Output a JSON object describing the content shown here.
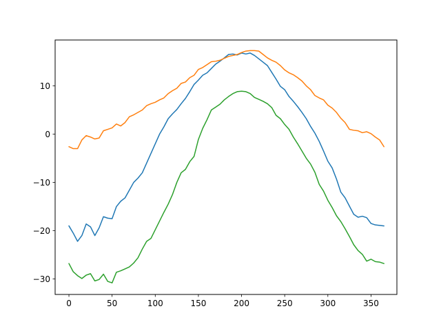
{
  "chart_data": {
    "type": "line",
    "title": "",
    "xlabel": "",
    "ylabel": "",
    "xlim": [
      -16,
      380
    ],
    "ylim": [
      -33.2,
      19.5
    ],
    "grid": false,
    "xticks": [
      0,
      50,
      100,
      150,
      200,
      250,
      300,
      350
    ],
    "yticks": [
      -30,
      -20,
      -10,
      0,
      10
    ],
    "series": [
      {
        "color": "#1f77b4",
        "x": [
          0,
          5,
          10,
          15,
          20,
          25,
          30,
          35,
          40,
          45,
          50,
          55,
          60,
          65,
          70,
          75,
          80,
          85,
          90,
          95,
          100,
          105,
          110,
          115,
          120,
          125,
          130,
          135,
          140,
          145,
          150,
          155,
          160,
          165,
          170,
          175,
          180,
          185,
          190,
          195,
          200,
          205,
          210,
          215,
          220,
          225,
          230,
          235,
          240,
          245,
          250,
          255,
          260,
          265,
          270,
          275,
          280,
          285,
          290,
          295,
          300,
          305,
          310,
          315,
          320,
          325,
          330,
          335,
          340,
          345,
          350,
          355,
          360,
          365
        ],
        "y": [
          -19,
          -20.5,
          -22.2,
          -21,
          -18.6,
          -19.2,
          -21,
          -19.4,
          -17.1,
          -17.4,
          -17.5,
          -15,
          -13.9,
          -13.2,
          -11.6,
          -10,
          -9.1,
          -8,
          -6,
          -4,
          -2,
          0,
          1.5,
          3.2,
          4.2,
          5.1,
          6.3,
          7.4,
          8.8,
          10.3,
          11.2,
          12.2,
          12.7,
          13.6,
          14.5,
          15.1,
          15.8,
          16.5,
          16.6,
          16.4,
          16.8,
          16.6,
          16.8,
          16.3,
          15.6,
          14.9,
          14.2,
          12.8,
          11.4,
          9.9,
          9.2,
          7.8,
          6.8,
          5.7,
          4.5,
          3.2,
          1.6,
          0.2,
          -1.5,
          -3.5,
          -5.6,
          -7,
          -9.3,
          -12,
          -13.2,
          -14.9,
          -16.6,
          -17.2,
          -17,
          -17.3,
          -18.5,
          -18.8,
          -18.9,
          -19
        ]
      },
      {
        "color": "#ff7f0e",
        "x": [
          0,
          5,
          10,
          15,
          20,
          25,
          30,
          35,
          40,
          45,
          50,
          55,
          60,
          65,
          70,
          75,
          80,
          85,
          90,
          95,
          100,
          105,
          110,
          115,
          120,
          125,
          130,
          135,
          140,
          145,
          150,
          155,
          160,
          165,
          170,
          175,
          180,
          185,
          190,
          195,
          200,
          205,
          210,
          215,
          220,
          225,
          230,
          235,
          240,
          245,
          250,
          255,
          260,
          265,
          270,
          275,
          280,
          285,
          290,
          295,
          300,
          305,
          310,
          315,
          320,
          325,
          330,
          335,
          340,
          345,
          350,
          355,
          360,
          365
        ],
        "y": [
          -2.6,
          -3,
          -3,
          -1.2,
          -0.3,
          -0.6,
          -1,
          -0.8,
          0.7,
          1,
          1.3,
          2.1,
          1.7,
          2.4,
          3.6,
          4,
          4.5,
          5,
          5.9,
          6.3,
          6.6,
          7.1,
          7.5,
          8.4,
          9,
          9.5,
          10.5,
          10.8,
          11.7,
          12.2,
          13.4,
          13.8,
          14.4,
          15,
          15.1,
          15.3,
          15.7,
          16.1,
          16.3,
          16.5,
          16.9,
          17.2,
          17.3,
          17.3,
          17.2,
          16.5,
          15.8,
          15.3,
          14.9,
          14.2,
          13.3,
          12.7,
          12.3,
          11.7,
          11,
          10,
          9.2,
          8,
          7.5,
          7.1,
          6,
          5.4,
          4.5,
          3.3,
          2.4,
          1,
          0.8,
          0.7,
          0.3,
          0.5,
          0.1,
          -0.6,
          -1.2,
          -2.6
        ]
      },
      {
        "color": "#2ca02c",
        "x": [
          0,
          5,
          10,
          15,
          20,
          25,
          30,
          35,
          40,
          45,
          50,
          55,
          60,
          65,
          70,
          75,
          80,
          85,
          90,
          95,
          100,
          105,
          110,
          115,
          120,
          125,
          130,
          135,
          140,
          145,
          150,
          155,
          160,
          165,
          170,
          175,
          180,
          185,
          190,
          195,
          200,
          205,
          210,
          215,
          220,
          225,
          230,
          235,
          240,
          245,
          250,
          255,
          260,
          265,
          270,
          275,
          280,
          285,
          290,
          295,
          300,
          305,
          310,
          315,
          320,
          325,
          330,
          335,
          340,
          345,
          350,
          355,
          360,
          365
        ],
        "y": [
          -26.8,
          -28.5,
          -29.3,
          -29.9,
          -29.2,
          -28.9,
          -30.4,
          -30.1,
          -29,
          -30.5,
          -30.8,
          -28.6,
          -28.3,
          -27.9,
          -27.5,
          -26.7,
          -25.6,
          -23.8,
          -22.2,
          -21.6,
          -19.8,
          -18,
          -16.2,
          -14.5,
          -12.5,
          -10,
          -8,
          -7.3,
          -5.7,
          -4.6,
          -1.1,
          1.2,
          3,
          5,
          5.6,
          6.2,
          7.1,
          7.8,
          8.4,
          8.8,
          8.9,
          8.8,
          8.4,
          7.6,
          7.2,
          6.8,
          6.3,
          5.5,
          3.9,
          3.2,
          2,
          1,
          -0.6,
          -2,
          -3.5,
          -5,
          -6.2,
          -7.9,
          -10.4,
          -11.8,
          -13.7,
          -15.2,
          -16.9,
          -18.1,
          -19.6,
          -21.2,
          -22.9,
          -24.1,
          -24.9,
          -26.3,
          -25.9,
          -26.4,
          -26.5,
          -26.8
        ]
      }
    ]
  }
}
